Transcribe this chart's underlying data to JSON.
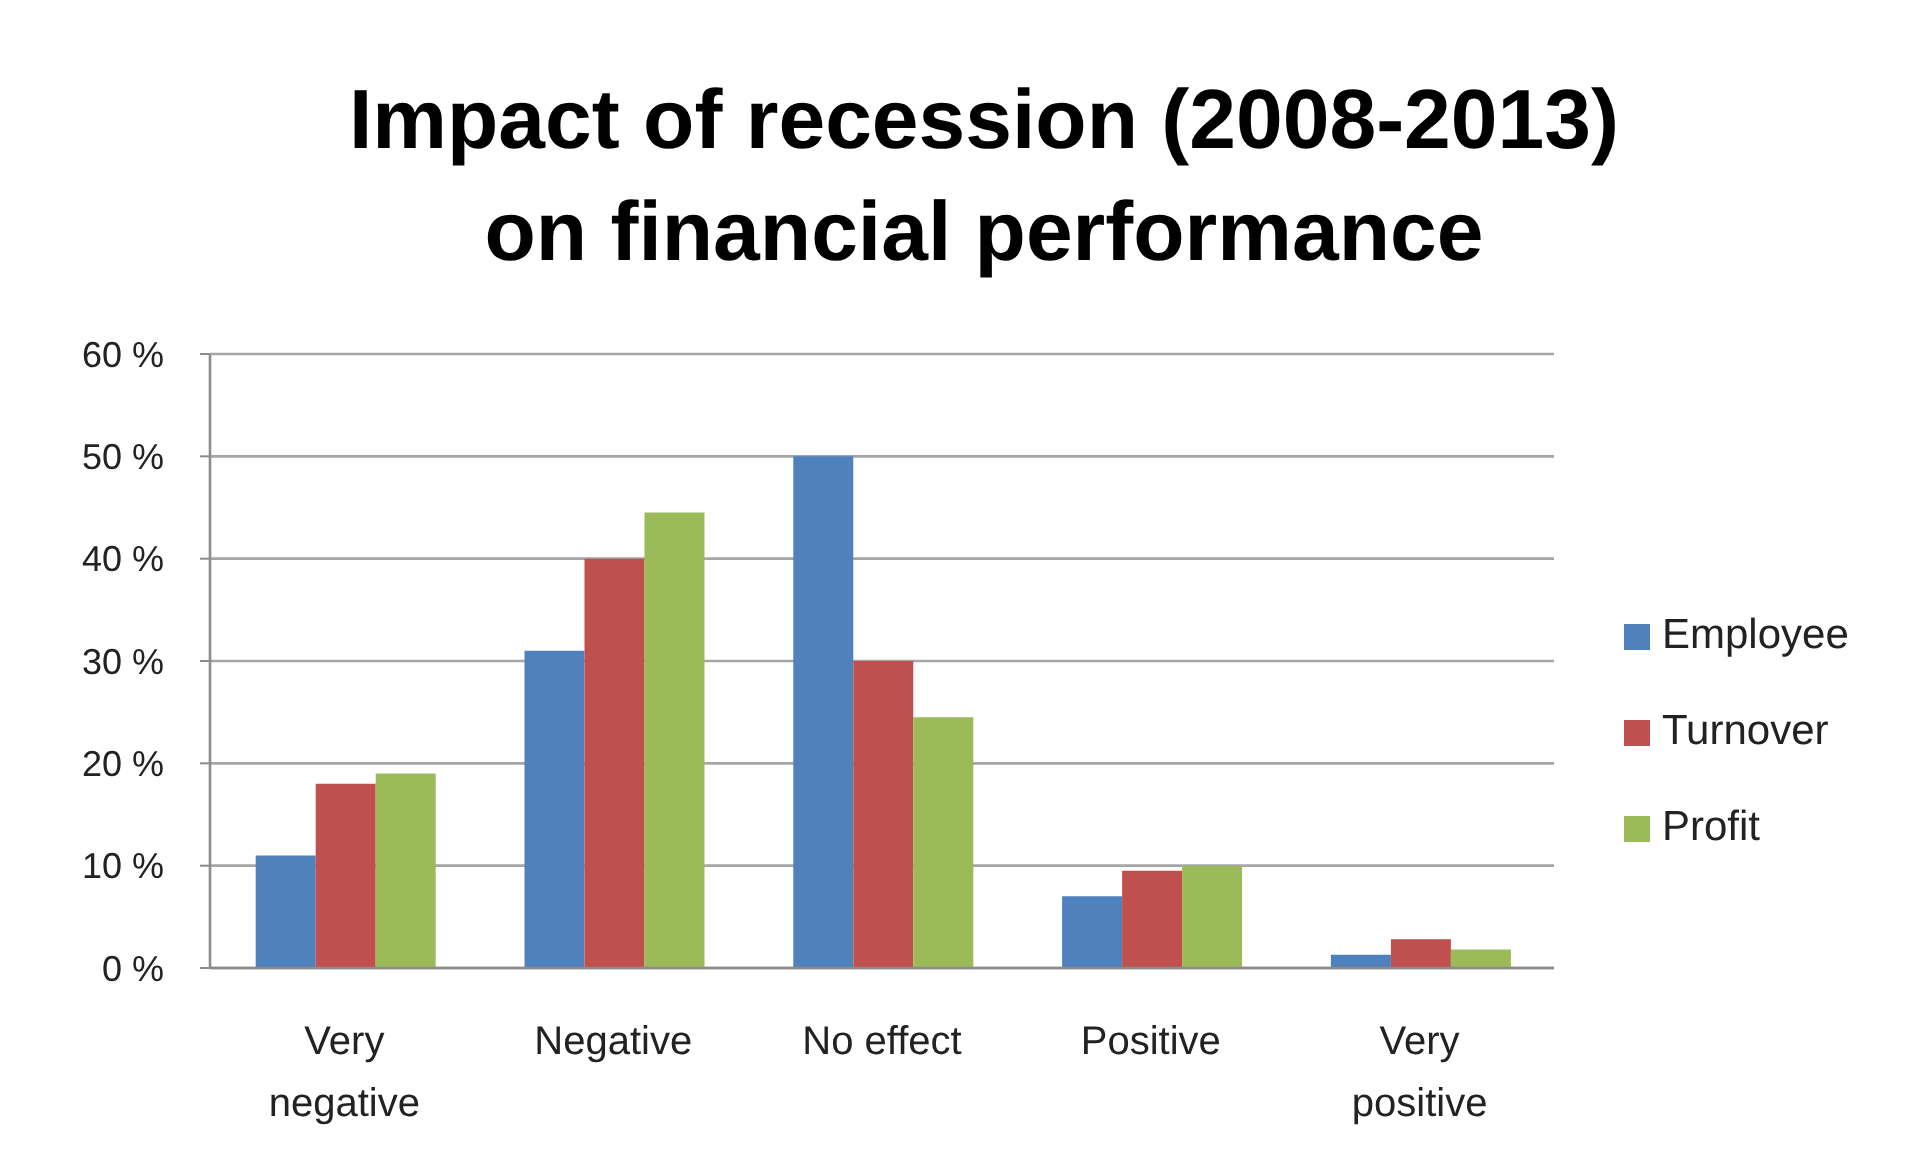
{
  "chart_data": {
    "type": "bar",
    "title": "Impact of recession (2008-2013)\non financial performance",
    "categories": [
      "Very negative",
      "Negative",
      "No effect",
      "Positive",
      "Very positive"
    ],
    "series": [
      {
        "name": "Employee",
        "color": "#4f81bd",
        "values": [
          11,
          31,
          50,
          7,
          1.3
        ]
      },
      {
        "name": "Turnover",
        "color": "#c0504d",
        "values": [
          18,
          40,
          30,
          9.5,
          2.8
        ]
      },
      {
        "name": "Profit",
        "color": "#9bbb59",
        "values": [
          19,
          44.5,
          24.5,
          10,
          1.8
        ]
      }
    ],
    "ylim": [
      0,
      60
    ],
    "yticks": [
      {
        "value": 0,
        "label": "0 %"
      },
      {
        "value": 10,
        "label": "10 %"
      },
      {
        "value": 20,
        "label": "20 %"
      },
      {
        "value": 30,
        "label": "30 %"
      },
      {
        "value": 40,
        "label": "40 %"
      },
      {
        "value": 50,
        "label": "50 %"
      },
      {
        "value": 60,
        "label": "60 %"
      }
    ],
    "grid": "y",
    "legend": "right"
  }
}
